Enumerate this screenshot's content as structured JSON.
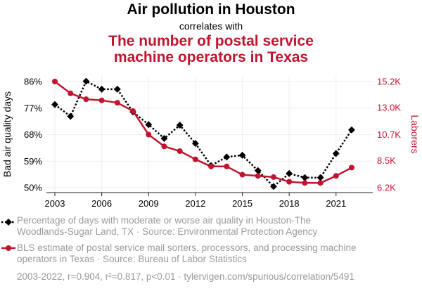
{
  "header": {
    "title": "Air pollution in Houston",
    "subtitle": "correlates with",
    "headline_line1": "The number of postal service",
    "headline_line2": "machine operators in Texas"
  },
  "legend": {
    "series1_line1": "Percentage of days with moderate or worse air quality in Houston-The",
    "series1_line2": "Woodlands-Sugar Land, TX · Source: Environmental Protection Agency",
    "series2_line1": "BLS estimate of postal service mail sorters, processors, and processing machine",
    "series2_line2": "operators in Texas · Source: Bureau of Labor Statistics"
  },
  "footer": "2003-2022, r=0.904, r²=0.817, p<0.01 · tylervigen.com/spurious/correlation/5491",
  "colors": {
    "series1": "#000000",
    "series2": "#c0152f",
    "grid": "#eeeeee",
    "muted": "#9a9a9a"
  },
  "chart_data": {
    "type": "line",
    "x": [
      2003,
      2004,
      2005,
      2006,
      2007,
      2008,
      2009,
      2010,
      2011,
      2012,
      2013,
      2014,
      2015,
      2016,
      2017,
      2018,
      2019,
      2020,
      2021,
      2022
    ],
    "x_ticks": [
      2003,
      2006,
      2009,
      2012,
      2015,
      2018,
      2021
    ],
    "x_tick_labels": [
      "2003",
      "2006",
      "2009",
      "2012",
      "2015",
      "2018",
      "2021"
    ],
    "ylabel_left": "Bad air quality days",
    "ylabel_right": "Laborers",
    "y_left_ticks": [
      50,
      59,
      68,
      77,
      86
    ],
    "y_left_tick_labels": [
      "50%",
      "59%",
      "68%",
      "77%",
      "86%"
    ],
    "y_left_lim": [
      50,
      86
    ],
    "y_right_ticks": [
      6200,
      8500,
      10700,
      13000,
      15200
    ],
    "y_right_tick_labels": [
      "6.2K",
      "8.5K",
      "10.7K",
      "13.0K",
      "15.2K"
    ],
    "y_right_lim": [
      6200,
      15200
    ],
    "series": [
      {
        "name": "Percentage of days with moderate or worse air quality",
        "axis": "left",
        "style": "dotted",
        "marker": "diamond",
        "values": [
          78.2,
          74.2,
          86.1,
          83.4,
          83.4,
          75.7,
          71.4,
          66.7,
          71.2,
          65.0,
          57.5,
          60.4,
          61.0,
          55.8,
          50.4,
          54.8,
          53.4,
          53.4,
          61.6,
          69.6
        ]
      },
      {
        "name": "BLS estimate of postal service mail sorters, processors, and processing machine operators",
        "axis": "right",
        "style": "solid",
        "marker": "circle",
        "values": [
          15200,
          14200,
          13700,
          13600,
          13400,
          12700,
          10700,
          9700,
          9300,
          8600,
          8000,
          8000,
          7300,
          7200,
          7100,
          6700,
          6600,
          6600,
          7200,
          7900
        ]
      }
    ]
  }
}
